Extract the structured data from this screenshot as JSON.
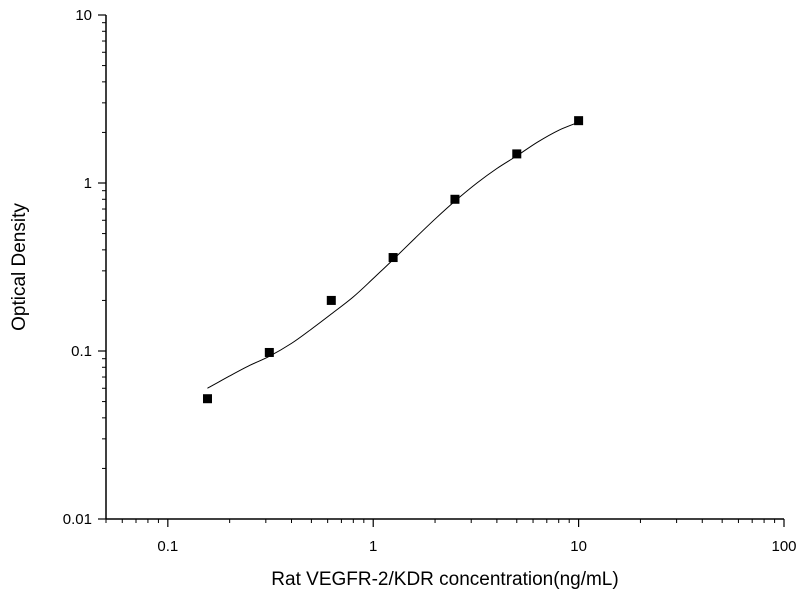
{
  "chart_data": {
    "type": "scatter",
    "title": "",
    "xlabel": "Rat VEGFR-2/KDR concentration(ng/mL)",
    "ylabel": "Optical Density",
    "x_scale": "log",
    "y_scale": "log",
    "xlim": [
      0.05,
      100
    ],
    "ylim": [
      0.01,
      10
    ],
    "x_ticks": [
      {
        "value": 0.1,
        "label": "0.1"
      },
      {
        "value": 1,
        "label": "1"
      },
      {
        "value": 10,
        "label": "10"
      },
      {
        "value": 100,
        "label": "100"
      }
    ],
    "y_ticks": [
      {
        "value": 0.01,
        "label": "0.01"
      },
      {
        "value": 0.1,
        "label": "0.1"
      },
      {
        "value": 1,
        "label": "1"
      },
      {
        "value": 10,
        "label": "10"
      }
    ],
    "grid": false,
    "legend": "none",
    "marker_color": "#000000",
    "line_color": "#000000",
    "series": [
      {
        "x": [
          0.156,
          0.312,
          0.625,
          1.25,
          2.5,
          5,
          10
        ],
        "y": [
          0.052,
          0.098,
          0.2,
          0.36,
          0.8,
          1.49,
          2.35
        ]
      }
    ],
    "fit_curve": {
      "x": [
        0.156,
        0.2,
        0.25,
        0.312,
        0.4,
        0.5,
        0.625,
        0.8,
        1.0,
        1.25,
        1.6,
        2.0,
        2.5,
        3.2,
        4.0,
        5.0,
        6.3,
        8.0,
        10.0
      ],
      "y": [
        0.06,
        0.071,
        0.082,
        0.093,
        0.111,
        0.135,
        0.166,
        0.21,
        0.27,
        0.35,
        0.47,
        0.61,
        0.78,
        1.0,
        1.22,
        1.45,
        1.75,
        2.06,
        2.3
      ]
    }
  }
}
